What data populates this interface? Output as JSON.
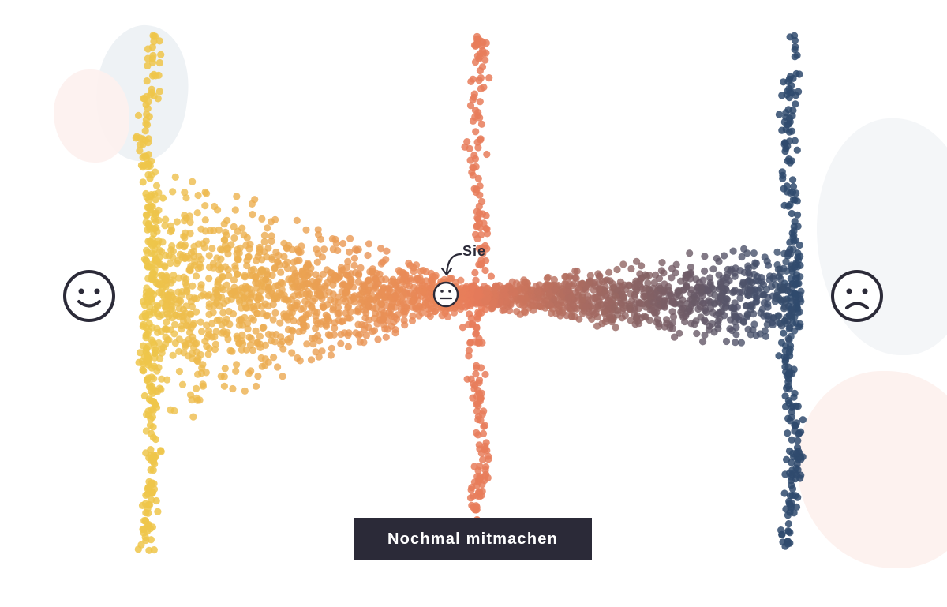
{
  "faces": {
    "left": "happy-face-icon",
    "right": "sad-face-icon",
    "user": "neutral-face-icon"
  },
  "user_marker": {
    "label": "Sie"
  },
  "cta": {
    "label": "Nochmal mitmachen"
  },
  "chart_data": {
    "type": "scatter",
    "title": "",
    "xlabel": "",
    "ylabel": "",
    "colors": {
      "left": "#eec64a",
      "middle": "#e77c5a",
      "right": "#2f4a6d"
    },
    "x_scale": {
      "left_end": "happy-face-icon",
      "right_end": "sad-face-icon"
    },
    "user_position": 0.5,
    "grid": false
  }
}
